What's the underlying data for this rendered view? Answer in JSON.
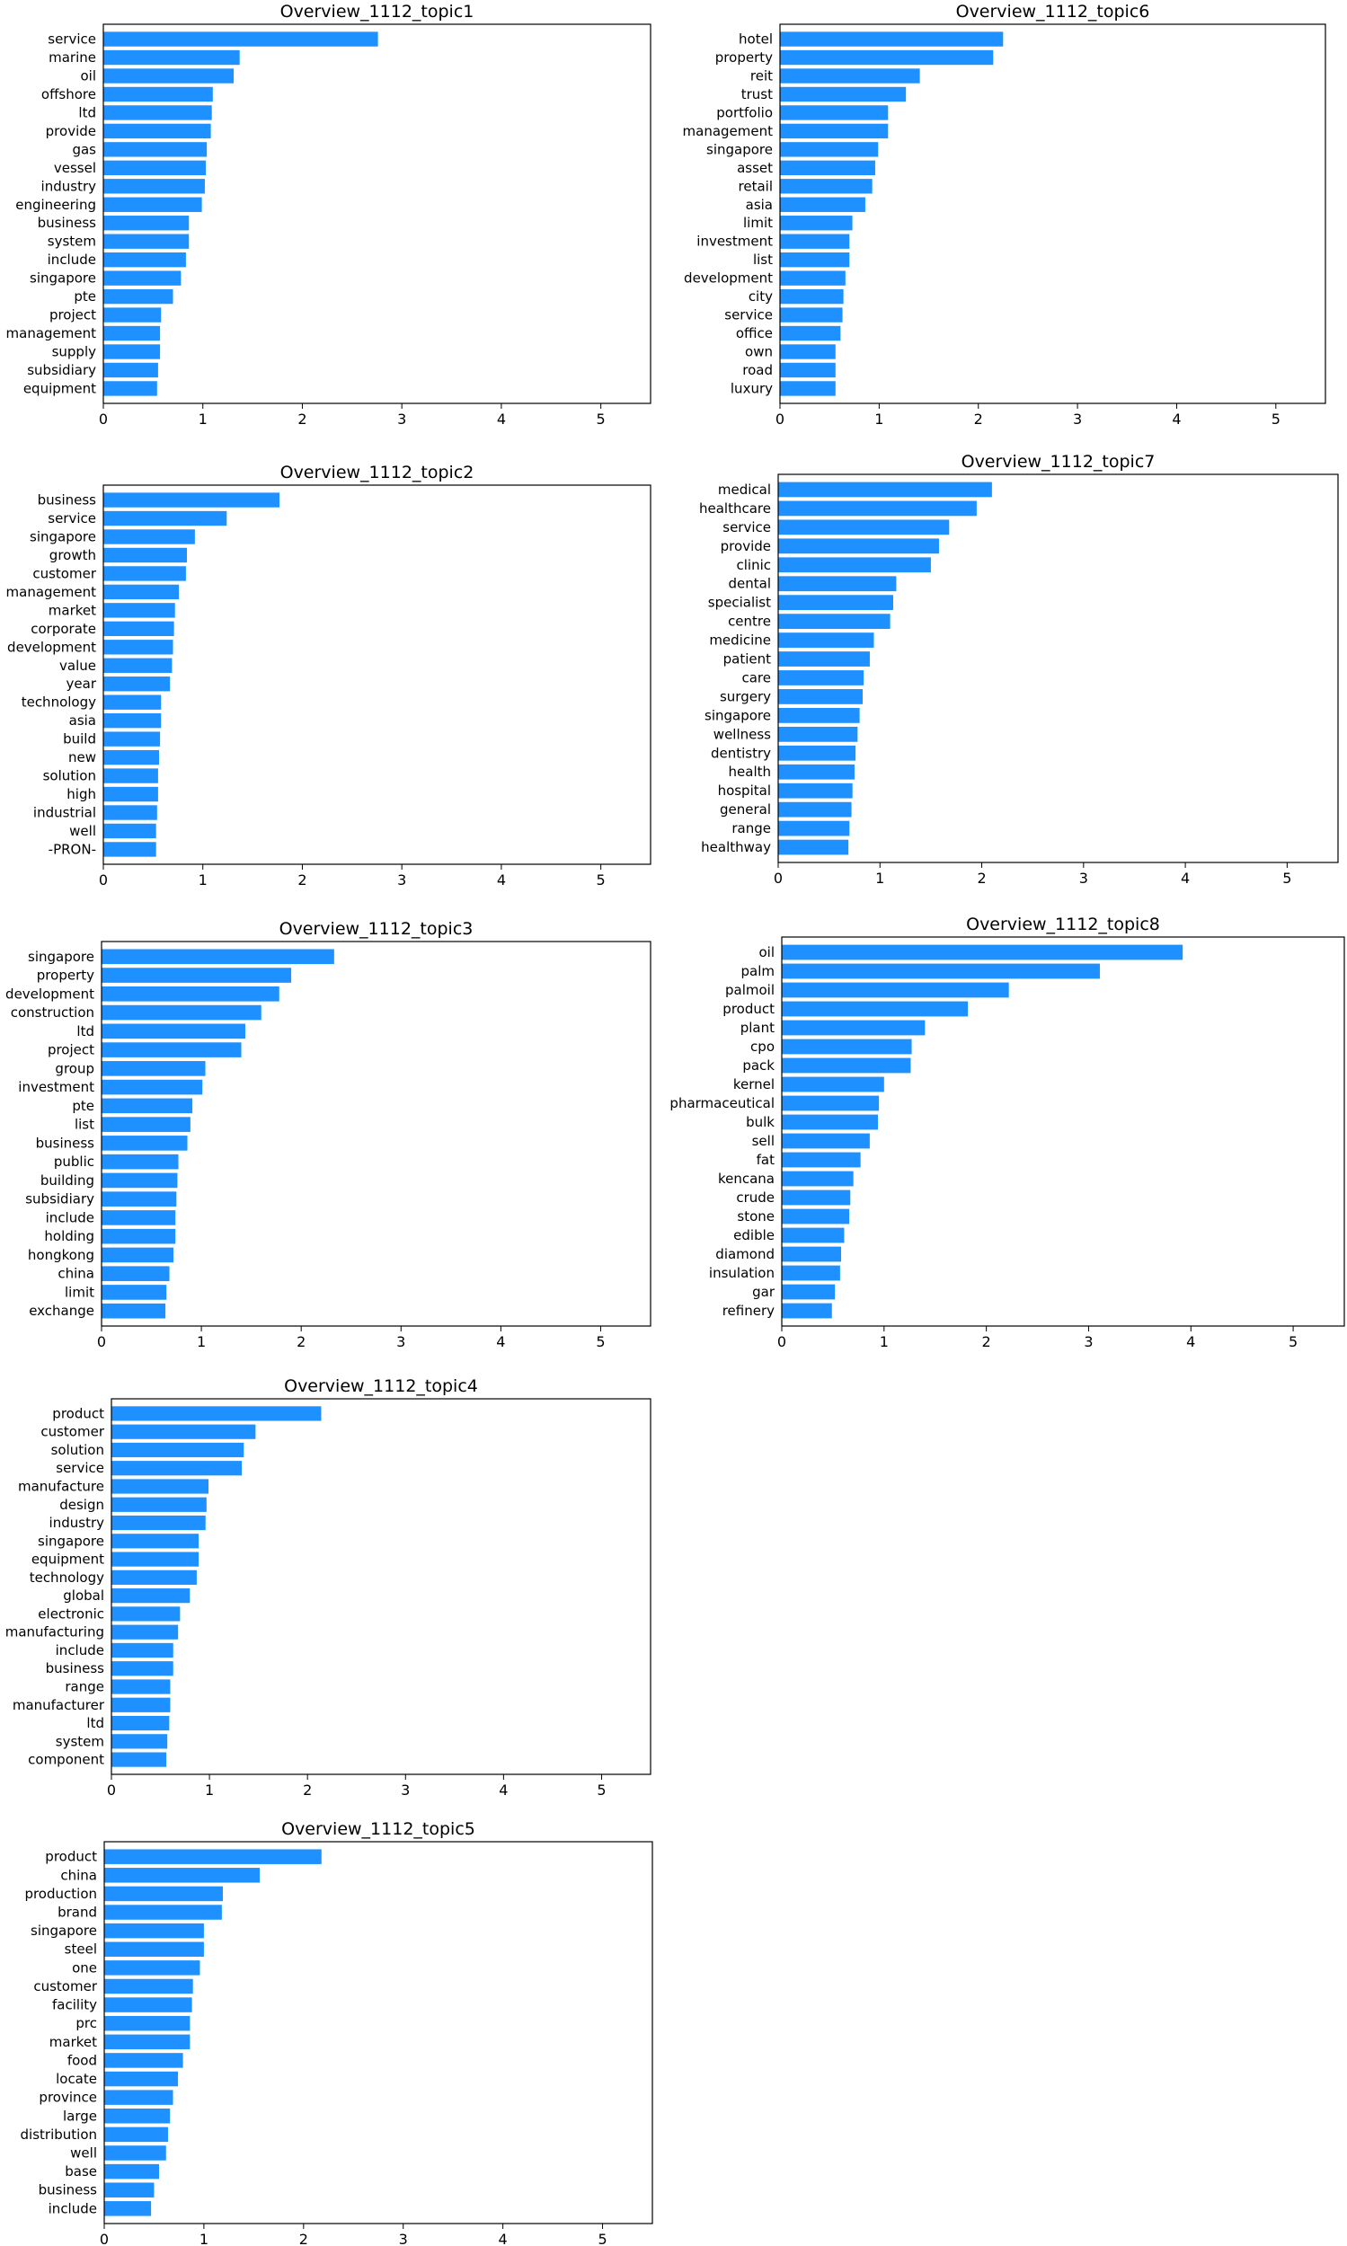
{
  "figure": {
    "bar_color": "#1e90ff",
    "axis_color": "#000000",
    "background": "#ffffff"
  },
  "chart_data": [
    {
      "type": "bar",
      "orientation": "horizontal",
      "title": "Overview_1112_topic1",
      "xlim": [
        0,
        5.5
      ],
      "xticks": [
        0,
        1,
        2,
        3,
        4,
        5
      ],
      "grid": false,
      "categories": [
        "service",
        "marine",
        "oil",
        "offshore",
        "ltd",
        "provide",
        "gas",
        "vessel",
        "industry",
        "engineering",
        "business",
        "system",
        "include",
        "singapore",
        "pte",
        "project",
        "management",
        "supply",
        "subsidiary",
        "equipment"
      ],
      "values": [
        2.76,
        1.37,
        1.31,
        1.1,
        1.09,
        1.08,
        1.04,
        1.03,
        1.02,
        0.99,
        0.86,
        0.86,
        0.83,
        0.78,
        0.7,
        0.58,
        0.57,
        0.57,
        0.55,
        0.54
      ]
    },
    {
      "type": "bar",
      "orientation": "horizontal",
      "title": "Overview_1112_topic6",
      "xlim": [
        0,
        5.5
      ],
      "xticks": [
        0,
        1,
        2,
        3,
        4,
        5
      ],
      "grid": false,
      "categories": [
        "hotel",
        "property",
        "reit",
        "trust",
        "portfolio",
        "management",
        "singapore",
        "asset",
        "retail",
        "asia",
        "limit",
        "investment",
        "list",
        "development",
        "city",
        "service",
        "office",
        "own",
        "road",
        "luxury"
      ],
      "values": [
        2.25,
        2.15,
        1.41,
        1.27,
        1.09,
        1.09,
        0.99,
        0.96,
        0.93,
        0.86,
        0.73,
        0.7,
        0.7,
        0.66,
        0.64,
        0.63,
        0.61,
        0.56,
        0.56,
        0.56
      ]
    },
    {
      "type": "bar",
      "orientation": "horizontal",
      "title": "Overview_1112_topic2",
      "xlim": [
        0,
        5.5
      ],
      "xticks": [
        0,
        1,
        2,
        3,
        4,
        5
      ],
      "grid": false,
      "categories": [
        "business",
        "service",
        "singapore",
        "growth",
        "customer",
        "management",
        "market",
        "corporate",
        "development",
        "value",
        "year",
        "technology",
        "asia",
        "build",
        "new",
        "solution",
        "high",
        "industrial",
        "well",
        "-PRON-"
      ],
      "values": [
        1.77,
        1.24,
        0.92,
        0.84,
        0.83,
        0.76,
        0.72,
        0.71,
        0.7,
        0.69,
        0.67,
        0.58,
        0.58,
        0.57,
        0.56,
        0.55,
        0.55,
        0.54,
        0.53,
        0.53
      ]
    },
    {
      "type": "bar",
      "orientation": "horizontal",
      "title": "Overview_1112_topic7",
      "xlim": [
        0,
        5.5
      ],
      "xticks": [
        0,
        1,
        2,
        3,
        4,
        5
      ],
      "grid": false,
      "categories": [
        "medical",
        "healthcare",
        "service",
        "provide",
        "clinic",
        "dental",
        "specialist",
        "centre",
        "medicine",
        "patient",
        "care",
        "surgery",
        "singapore",
        "wellness",
        "dentistry",
        "health",
        "hospital",
        "general",
        "range",
        "healthway"
      ],
      "values": [
        2.1,
        1.95,
        1.68,
        1.58,
        1.5,
        1.16,
        1.13,
        1.1,
        0.94,
        0.9,
        0.84,
        0.83,
        0.8,
        0.78,
        0.76,
        0.75,
        0.73,
        0.72,
        0.7,
        0.69
      ]
    },
    {
      "type": "bar",
      "orientation": "horizontal",
      "title": "Overview_1112_topic3",
      "xlim": [
        0,
        5.5
      ],
      "xticks": [
        0,
        1,
        2,
        3,
        4,
        5
      ],
      "grid": false,
      "categories": [
        "singapore",
        "property",
        "development",
        "construction",
        "ltd",
        "project",
        "group",
        "investment",
        "pte",
        "list",
        "business",
        "public",
        "building",
        "subsidiary",
        "include",
        "holding",
        "hongkong",
        "china",
        "limit",
        "exchange"
      ],
      "values": [
        2.33,
        1.9,
        1.78,
        1.6,
        1.44,
        1.4,
        1.04,
        1.01,
        0.91,
        0.89,
        0.86,
        0.77,
        0.76,
        0.75,
        0.74,
        0.74,
        0.72,
        0.68,
        0.65,
        0.64
      ]
    },
    {
      "type": "bar",
      "orientation": "horizontal",
      "title": "Overview_1112_topic8",
      "xlim": [
        0,
        5.5
      ],
      "xticks": [
        0,
        1,
        2,
        3,
        4,
        5
      ],
      "grid": false,
      "categories": [
        "oil",
        "palm",
        "palmoil",
        "product",
        "plant",
        "cpo",
        "pack",
        "kernel",
        "pharmaceutical",
        "bulk",
        "sell",
        "fat",
        "kencana",
        "crude",
        "stone",
        "edible",
        "diamond",
        "insulation",
        "gar",
        "refinery"
      ],
      "values": [
        3.92,
        3.11,
        2.22,
        1.82,
        1.4,
        1.27,
        1.26,
        1.0,
        0.95,
        0.94,
        0.86,
        0.77,
        0.7,
        0.67,
        0.66,
        0.61,
        0.58,
        0.57,
        0.52,
        0.49
      ]
    },
    {
      "type": "bar",
      "orientation": "horizontal",
      "title": "Overview_1112_topic4",
      "xlim": [
        0,
        5.5
      ],
      "xticks": [
        0,
        1,
        2,
        3,
        4,
        5
      ],
      "grid": false,
      "categories": [
        "product",
        "customer",
        "solution",
        "service",
        "manufacture",
        "design",
        "industry",
        "singapore",
        "equipment",
        "technology",
        "global",
        "electronic",
        "manufacturing",
        "include",
        "business",
        "range",
        "manufacturer",
        "ltd",
        "system",
        "component"
      ],
      "values": [
        2.14,
        1.47,
        1.35,
        1.33,
        0.99,
        0.97,
        0.96,
        0.89,
        0.89,
        0.87,
        0.8,
        0.7,
        0.68,
        0.63,
        0.63,
        0.6,
        0.6,
        0.59,
        0.57,
        0.56
      ]
    },
    {
      "type": "bar",
      "orientation": "horizontal",
      "title": "Overview_1112_topic5",
      "xlim": [
        0,
        5.5
      ],
      "xticks": [
        0,
        1,
        2,
        3,
        4,
        5
      ],
      "grid": false,
      "categories": [
        "product",
        "china",
        "production",
        "brand",
        "singapore",
        "steel",
        "one",
        "customer",
        "facility",
        "prc",
        "market",
        "food",
        "locate",
        "province",
        "large",
        "distribution",
        "well",
        "base",
        "business",
        "include"
      ],
      "values": [
        2.18,
        1.56,
        1.19,
        1.18,
        1.0,
        1.0,
        0.96,
        0.89,
        0.88,
        0.86,
        0.86,
        0.79,
        0.74,
        0.69,
        0.66,
        0.64,
        0.62,
        0.55,
        0.5,
        0.47
      ]
    }
  ]
}
